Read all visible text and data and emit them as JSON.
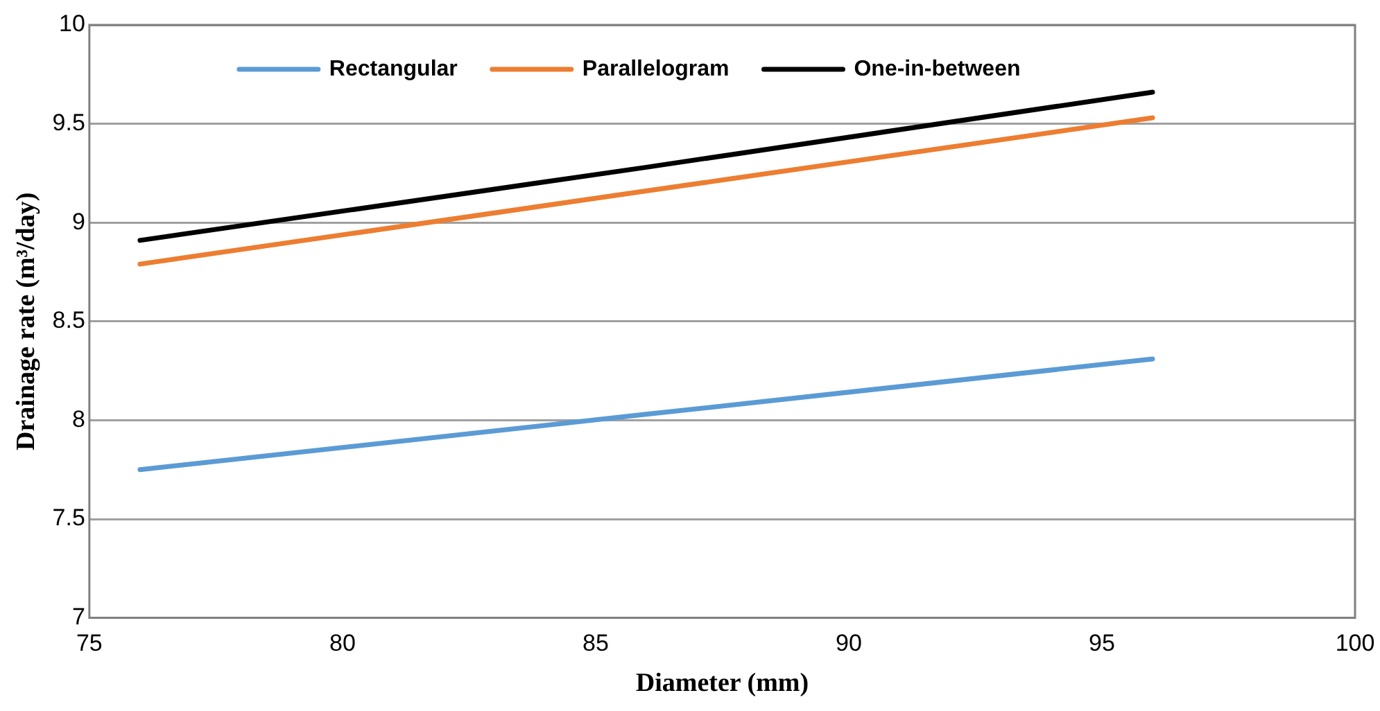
{
  "chart_data": {
    "type": "line",
    "xlabel": "Diameter (mm)",
    "ylabel": "Drainage rate (m³/day)",
    "xlim": [
      75,
      100
    ],
    "xticks": [
      75,
      80,
      85,
      90,
      95,
      100
    ],
    "ylim": [
      7,
      10
    ],
    "yticks": [
      7,
      7.5,
      8,
      8.5,
      9,
      9.5,
      10
    ],
    "grid": "y",
    "legend": "top",
    "marker": "none",
    "line_style": "solid",
    "series": [
      {
        "name": "Rectangular",
        "color": "#5b9bd5",
        "x": [
          76,
          86,
          96
        ],
        "values": [
          7.75,
          8.03,
          8.31
        ]
      },
      {
        "name": "Parallelogram",
        "color": "#ed7d31",
        "x": [
          76,
          86,
          96
        ],
        "values": [
          8.79,
          9.16,
          9.53
        ]
      },
      {
        "name": "One-in-between",
        "color": "#000000",
        "x": [
          76,
          86,
          96
        ],
        "values": [
          8.91,
          9.28,
          9.66
        ]
      }
    ]
  }
}
